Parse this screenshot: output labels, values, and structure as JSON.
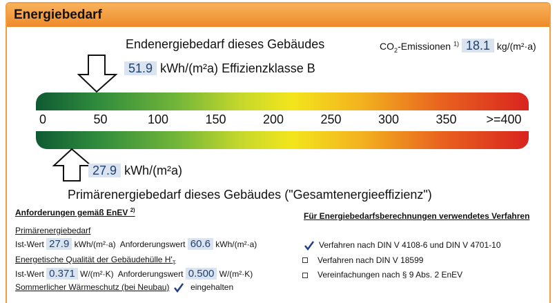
{
  "header": {
    "title": "Energiebedarf"
  },
  "end_energy": {
    "title": "Endenergiebedarf dieses Gebäudes",
    "value": "51.9",
    "unit": "kWh/(m²a)",
    "class_label": "Effizienzklasse B"
  },
  "co2": {
    "label": "CO",
    "sub": "2",
    "label_rest": "-Emissionen",
    "note": "1)",
    "value": "18.1",
    "unit": "kg/(m²·a)"
  },
  "scale": [
    "0",
    "50",
    "100",
    "150",
    "200",
    "250",
    "300",
    "350",
    ">=400"
  ],
  "primary_energy": {
    "value": "27.9",
    "unit": "kWh/(m²a)",
    "title": "Primärenergiebedarf dieses Gebäudes",
    "title_note": "(\"Gesamtenergieeffizienz\")"
  },
  "requirements": {
    "title": "Anforderungen gemäß EnEV",
    "note": "2)",
    "primary": {
      "heading": "Primärenergiebedarf",
      "actual_label": "Ist-Wert",
      "actual_value": "27.9",
      "unit": "kWh/(m²·a)",
      "required_label": "Anforderungswert",
      "required_value": "60.6"
    },
    "envelope": {
      "heading": "Energetische Qualität der Gebäudehülle H'",
      "heading_sub": "T",
      "actual_label": "Ist-Wert",
      "actual_value": "0.371",
      "unit": "W/(m²·K)",
      "required_label": "Anforderungswert",
      "required_value": "0.500"
    },
    "summer": {
      "label": "Sommerlicher Wärmeschutz (bei Neubau)",
      "checked": true,
      "status": "eingehalten"
    }
  },
  "method": {
    "title": "Für Energiebedarfsberechnungen verwendetes Verfahren",
    "options": [
      {
        "label": "Verfahren nach DIN V 4108-6 und DIN V 4701-10",
        "checked": true
      },
      {
        "label": "Verfahren nach DIN V 18599",
        "checked": false
      },
      {
        "label": "Vereinfachungen nach § 9 Abs. 2 EnEV",
        "checked": false
      }
    ]
  }
}
